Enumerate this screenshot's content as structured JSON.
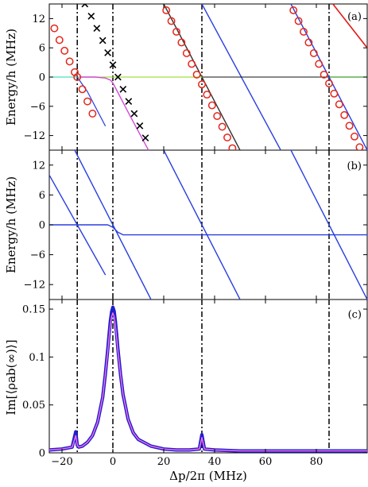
{
  "chart_data": [
    {
      "panel_label": "(a)",
      "type": "line",
      "ylabel": "Energy/h (MHz)",
      "xlim": [
        -25,
        100
      ],
      "ylim": [
        -15,
        15
      ],
      "yticks": [
        12,
        6,
        0,
        -6,
        -12
      ],
      "vlines": [
        -14,
        0,
        35,
        85
      ],
      "series": [
        {
          "color": "#E51A1A",
          "width": 1.6,
          "x": [
            86.5,
            100
          ],
          "y": [
            15,
            6
          ]
        },
        {
          "color": "#2A3FE0",
          "width": 1.4,
          "x": [
            35,
            66
          ],
          "y": [
            15,
            -15
          ]
        },
        {
          "color": "#333333",
          "width": 1.4,
          "x": [
            20,
            35,
            50,
            65
          ],
          "y": [
            15,
            0,
            -15,
            -30
          ]
        },
        {
          "color": "#111111",
          "width": 1.0,
          "x": [
            35,
            85
          ],
          "y": [
            0,
            0
          ]
        },
        {
          "color": "#3C9C2A",
          "width": 1.2,
          "x": [
            85,
            100
          ],
          "y": [
            0,
            0
          ]
        },
        {
          "color": "#49E0C0",
          "width": 1.2,
          "x": [
            -25,
            -14
          ],
          "y": [
            0,
            0
          ]
        },
        {
          "color": "#2A3FE0",
          "width": 1.4,
          "x": [
            70,
            85,
            100
          ],
          "y": [
            15,
            0,
            -15
          ]
        },
        {
          "color": "#A0E040",
          "width": 1.2,
          "x": [
            -14,
            0,
            35
          ],
          "y": [
            0,
            0,
            0
          ]
        },
        {
          "color": "#D24BD6",
          "width": 1.4,
          "x": [
            -13,
            -7,
            -3,
            -1,
            0,
            1,
            3,
            7,
            14,
            17,
            22
          ],
          "y": [
            0,
            0,
            -0.2,
            -0.6,
            -1.2,
            -2.2,
            -4.2,
            -8.2,
            -15,
            -18,
            -23
          ]
        },
        {
          "color": "#2A3FE0",
          "width": 1.2,
          "x": [
            -14,
            -10,
            -7,
            -3
          ],
          "y": [
            0,
            -3,
            -6,
            -10
          ]
        }
      ],
      "markers_o": {
        "color": "#E5261A",
        "x": [
          -23,
          -21,
          -19,
          -17,
          -15,
          -14,
          -12,
          -10,
          -8,
          21,
          23,
          25,
          27,
          29,
          31,
          33,
          35,
          37,
          39,
          41,
          43,
          45,
          47,
          49,
          71,
          73,
          75,
          77,
          79,
          81,
          83,
          85,
          87,
          89,
          91,
          93,
          95,
          97,
          99
        ],
        "y": [
          10,
          7.6,
          5.4,
          3.2,
          1.0,
          0,
          -2.5,
          -5,
          -7.5,
          13.7,
          11.5,
          9.3,
          7.1,
          4.9,
          2.7,
          0.5,
          -1.5,
          -3.6,
          -5.8,
          -8.0,
          -10.2,
          -12.4,
          -14.6,
          -16.8,
          13.7,
          11.5,
          9.3,
          7.1,
          4.9,
          2.7,
          0.5,
          -1.3,
          -3.4,
          -5.6,
          -7.8,
          -10.0,
          -12.2,
          -14.4,
          -16.6
        ]
      },
      "markers_x": {
        "color": "#000000",
        "x": [
          -11,
          -8.5,
          -6.3,
          -4,
          -2,
          0,
          2,
          4,
          6.2,
          8.4,
          10.6,
          12.8
        ],
        "y": [
          15,
          12.5,
          10,
          7.5,
          5,
          2.5,
          0,
          -2.5,
          -5,
          -7.5,
          -10,
          -12.5
        ]
      }
    },
    {
      "panel_label": "(b)",
      "type": "line",
      "ylabel": "Energy/h (MHz)",
      "xlim": [
        -25,
        100
      ],
      "ylim": [
        -15,
        15
      ],
      "yticks": [
        12,
        6,
        0,
        -6,
        -12
      ],
      "vlines": [
        -14,
        0,
        35,
        85
      ],
      "series": [
        {
          "color": "#2A3FE0",
          "width": 1.4,
          "x": [
            -25,
            -14,
            -3
          ],
          "y": [
            10,
            0,
            -10
          ]
        },
        {
          "color": "#2A3FE0",
          "width": 1.4,
          "x": [
            -15,
            0,
            15
          ],
          "y": [
            15,
            0,
            -15
          ]
        },
        {
          "color": "#2A3FE0",
          "width": 1.4,
          "x": [
            -25,
            -10,
            -5,
            -2,
            0,
            2,
            4,
            10,
            20,
            35,
            50,
            70,
            100
          ],
          "y": [
            0,
            0,
            0,
            0,
            -0.5,
            -1.5,
            -2,
            -2,
            -2,
            -2,
            -2,
            -2,
            -2
          ]
        },
        {
          "color": "#2A3FE0",
          "width": 1.4,
          "x": [
            20,
            35,
            50
          ],
          "y": [
            15,
            0,
            -15
          ]
        },
        {
          "color": "#2A3FE0",
          "width": 1.4,
          "x": [
            70,
            85,
            100
          ],
          "y": [
            15,
            0,
            -15
          ]
        }
      ]
    },
    {
      "panel_label": "(c)",
      "type": "line",
      "ylabel": "Im[⟨ρab(∞)⟩]",
      "xlabel": "Δp/2π (MHz)",
      "xlim": [
        -25,
        100
      ],
      "ylim": [
        0,
        0.16
      ],
      "yticks": [
        0.15,
        0.1,
        0.05,
        0
      ],
      "xticks": [
        -20,
        0,
        20,
        40,
        60,
        80
      ],
      "vlines": [
        -14,
        0,
        35,
        85
      ],
      "series": [
        {
          "color": "#1F1FCC",
          "width": 4.2,
          "x": [
            -25,
            -20,
            -16,
            -14.6,
            -14,
            -13.4,
            -12,
            -10,
            -8,
            -6,
            -4,
            -3,
            -2,
            -1.5,
            -1,
            -0.5,
            0,
            0.5,
            1,
            1.5,
            2,
            3,
            4,
            6,
            8,
            10,
            15,
            20,
            25,
            30,
            34,
            35,
            36,
            40,
            50,
            60,
            70,
            80,
            85,
            90,
            100
          ],
          "y": [
            0.003,
            0.004,
            0.006,
            0.022,
            0.008,
            0.006,
            0.007,
            0.011,
            0.018,
            0.032,
            0.058,
            0.081,
            0.108,
            0.123,
            0.137,
            0.147,
            0.152,
            0.148,
            0.137,
            0.123,
            0.108,
            0.082,
            0.061,
            0.035,
            0.021,
            0.014,
            0.007,
            0.004,
            0.003,
            0.003,
            0.004,
            0.019,
            0.004,
            0.003,
            0.002,
            0.002,
            0.002,
            0.002,
            0.002,
            0.002,
            0.002
          ]
        },
        {
          "color": "#FF6EE6",
          "width": 1.4,
          "x": [
            -25,
            -20,
            -16,
            -14.6,
            -14,
            -13.4,
            -12,
            -10,
            -8,
            -6,
            -4,
            -3,
            -2,
            -1.5,
            -1,
            -0.5,
            0,
            0.5,
            1,
            1.5,
            2,
            3,
            4,
            6,
            8,
            10,
            15,
            20,
            25,
            30,
            34,
            35,
            36,
            40,
            50,
            60,
            70,
            80,
            85,
            90,
            100
          ],
          "y": [
            0.003,
            0.004,
            0.006,
            0.018,
            0.008,
            0.006,
            0.007,
            0.011,
            0.018,
            0.032,
            0.058,
            0.081,
            0.106,
            0.12,
            0.133,
            0.142,
            0.146,
            0.142,
            0.133,
            0.12,
            0.106,
            0.082,
            0.061,
            0.035,
            0.021,
            0.014,
            0.007,
            0.004,
            0.003,
            0.003,
            0.004,
            0.016,
            0.004,
            0.003,
            0.002,
            0.002,
            0.002,
            0.002,
            0.002,
            0.002,
            0.002
          ]
        }
      ]
    }
  ],
  "colors": {
    "axis": "#000000",
    "vline": "#000000"
  }
}
